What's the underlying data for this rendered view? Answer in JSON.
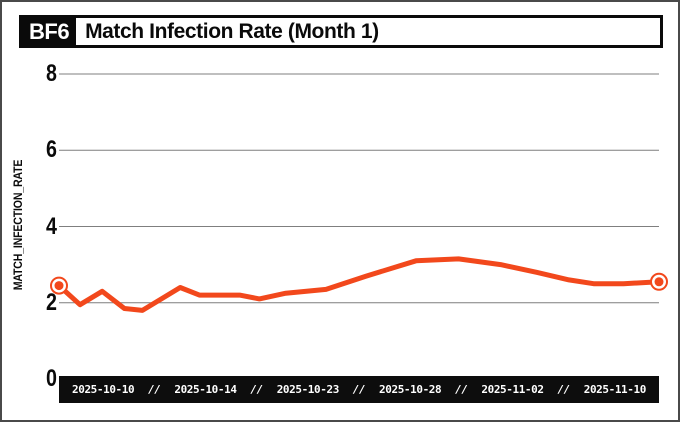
{
  "header": {
    "badge": "BF6",
    "title": "Match Infection Rate (Month 1)"
  },
  "chart_data": {
    "type": "line",
    "title": "Match Infection Rate (Month 1)",
    "xlabel": "",
    "ylabel": "MATCH_INFECTION_RATE",
    "ylim": [
      0,
      8
    ],
    "y_ticks": [
      0,
      2,
      4,
      6,
      8
    ],
    "x_tick_labels": [
      "2025-10-10",
      "2025-10-14",
      "2025-10-23",
      "2025-10-28",
      "2025-11-02",
      "2025-11-10"
    ],
    "x_tick_separator": "//",
    "grid": "horizontal",
    "legend_position": "none",
    "series": [
      {
        "name": "match_infection_rate",
        "color": "#f2481c",
        "markers": "first-and-last-point",
        "points": [
          {
            "x": 0.0,
            "y": 2.45
          },
          {
            "x": 0.035,
            "y": 1.95
          },
          {
            "x": 0.072,
            "y": 2.3
          },
          {
            "x": 0.109,
            "y": 1.85
          },
          {
            "x": 0.139,
            "y": 1.8
          },
          {
            "x": 0.202,
            "y": 2.4
          },
          {
            "x": 0.234,
            "y": 2.2
          },
          {
            "x": 0.301,
            "y": 2.2
          },
          {
            "x": 0.334,
            "y": 2.1
          },
          {
            "x": 0.378,
            "y": 2.25
          },
          {
            "x": 0.445,
            "y": 2.35
          },
          {
            "x": 0.512,
            "y": 2.7
          },
          {
            "x": 0.595,
            "y": 3.1
          },
          {
            "x": 0.666,
            "y": 3.15
          },
          {
            "x": 0.736,
            "y": 3.0
          },
          {
            "x": 0.796,
            "y": 2.8
          },
          {
            "x": 0.85,
            "y": 2.6
          },
          {
            "x": 0.891,
            "y": 2.5
          },
          {
            "x": 0.941,
            "y": 2.5
          },
          {
            "x": 1.0,
            "y": 2.55
          }
        ]
      }
    ]
  },
  "colors": {
    "line": "#f2481c",
    "grid": "#7f7f7f",
    "axis_bar_bg": "#0d0d0d",
    "axis_bar_text": "#ffffff",
    "frame_border": "#4a4a4a",
    "title_text": "#0a0a0a"
  }
}
